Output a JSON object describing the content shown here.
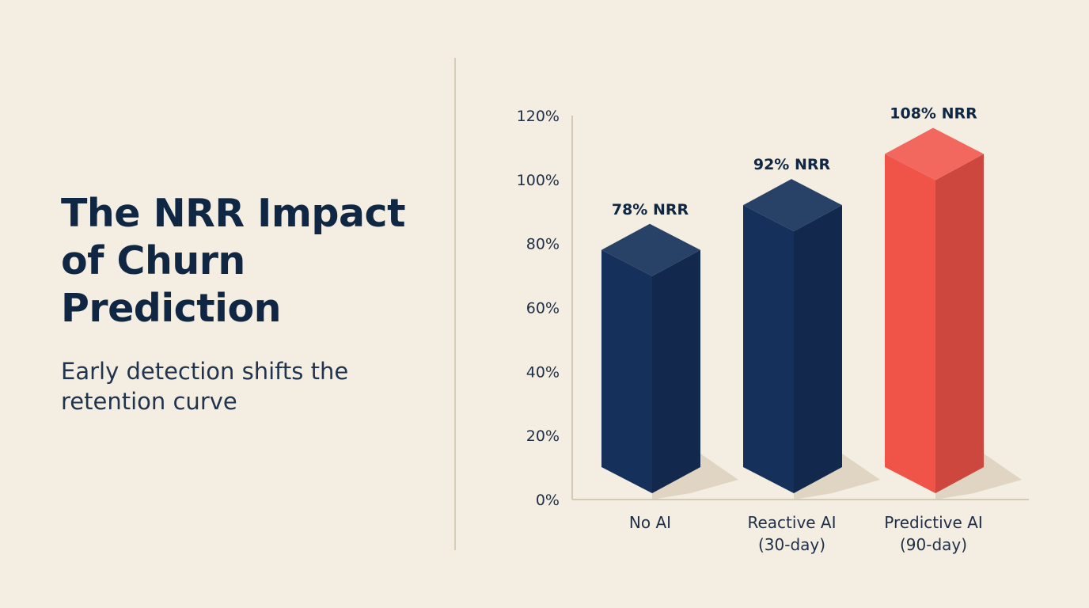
{
  "heading": {
    "title": "The NRR Impact of Churn Prediction",
    "subtitle": "Early detection shifts the retention curve"
  },
  "colors": {
    "background": "#f3ede2",
    "bar_navy": "#15305a",
    "bar_highlight": "#f05348",
    "shadow": "#ddd2bf",
    "axis": "#d4c9b4"
  },
  "chart_data": {
    "type": "bar",
    "categories": [
      [
        "No AI"
      ],
      [
        "Reactive AI",
        "(30-day)"
      ],
      [
        "Predictive AI",
        "(90-day)"
      ]
    ],
    "values": [
      78,
      92,
      108
    ],
    "data_labels": [
      "78% NRR",
      "92% NRR",
      "108% NRR"
    ],
    "highlight_index": 2,
    "ylim": [
      0,
      120
    ],
    "yticks": [
      0,
      20,
      40,
      60,
      80,
      100,
      120
    ],
    "ytick_labels": [
      "0%",
      "20%",
      "40%",
      "60%",
      "80%",
      "100%",
      "120%"
    ],
    "grid": false,
    "style": "3d-isometric"
  }
}
